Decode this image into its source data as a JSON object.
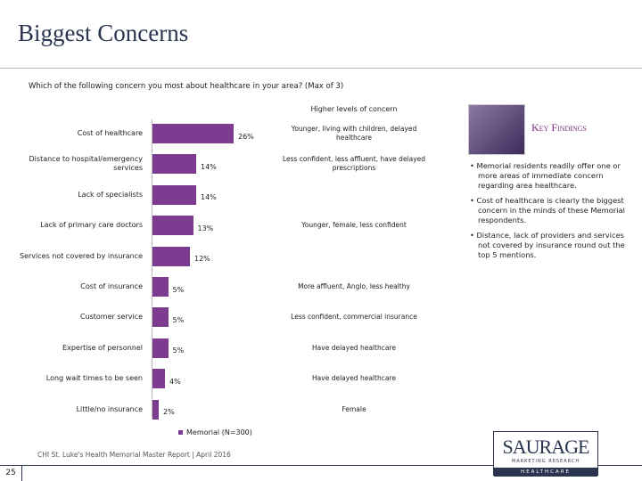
{
  "chart_data": {
    "type": "bar",
    "orientation": "horizontal",
    "title": "Biggest Concerns",
    "subtitle": "Which of the following concern you most about healthcare in your area? (Max of 3)",
    "categories": [
      "Cost of healthcare",
      "Distance to hospital/emergency services",
      "Lack of specialists",
      "Lack of primary care doctors",
      "Services not covered by insurance",
      "Cost of insurance",
      "Customer service",
      "Expertise of personnel",
      "Long wait times to be seen",
      "Little/no insurance"
    ],
    "series": [
      {
        "name": "Memorial (N=300)",
        "color": "#7d3c8f",
        "values": [
          26,
          14,
          14,
          13,
          12,
          5,
          5,
          5,
          4,
          2
        ],
        "value_labels": [
          "26%",
          "14%",
          "14%",
          "13%",
          "12%",
          "5%",
          "5%",
          "5%",
          "4%",
          "2%"
        ]
      }
    ],
    "notes_header": "Higher levels of concern",
    "notes": [
      "Younger, living with children, delayed healthcare",
      "Less confident, less affluent, have delayed prescriptions",
      null,
      "Younger, female, less confident",
      null,
      "More affluent, Anglo, less healthy",
      "Less confident, commercial insurance",
      "Have delayed healthcare",
      "Have delayed healthcare",
      "Female"
    ]
  },
  "key_findings": {
    "title": "Key Findings",
    "bullets": [
      "Memorial residents readily offer one or more areas of immediate concern regarding area healthcare.",
      "Cost of healthcare is clearly the biggest concern in the minds of these Memorial respondents.",
      "Distance, lack of providers and services not covered by insurance round out the top 5 mentions."
    ]
  },
  "footer": "CHI St. Luke's Health Memorial Master Report | April 2016",
  "page_number": "25",
  "logo": {
    "name": "SAURAGE",
    "tagline": "MARKETING RESEARCH",
    "division": "HEALTHCARE"
  }
}
